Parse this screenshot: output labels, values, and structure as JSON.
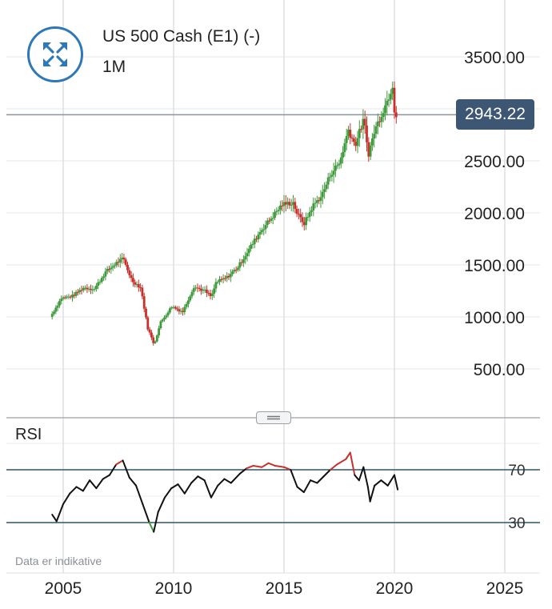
{
  "header": {
    "instrument": "US 500 Cash (E1) (-)",
    "timeframe": "1M",
    "expand_icon": "expand-arrows-icon"
  },
  "price_tag": "2943.22",
  "rsi": {
    "label": "RSI",
    "levels": [
      "70",
      "30"
    ]
  },
  "disclaimer": "Data er indikative",
  "colors": {
    "up": "#3d9a3a",
    "down": "#c8302c",
    "rsi_line": "#111111",
    "rsi_overbought": "#c8302c",
    "rsi_oversold": "#3d9a3a",
    "level_line": "#2e5566",
    "price_tag_bg": "#3d5673",
    "accent": "#2f78b7"
  },
  "chart_data": {
    "type": "candlestick",
    "last_price": 2943.22,
    "y_ticks": [
      "3500.00",
      "2500.00",
      "2000.00",
      "1500.00",
      "1000.00",
      "500.00"
    ],
    "x_ticks": [
      "2005",
      "2010",
      "2015",
      "2020",
      "2025"
    ],
    "grid": true,
    "price_points": [
      [
        2004.5,
        1000
      ],
      [
        2005.0,
        1180
      ],
      [
        2005.5,
        1200
      ],
      [
        2006.0,
        1280
      ],
      [
        2006.5,
        1270
      ],
      [
        2007.0,
        1430
      ],
      [
        2007.5,
        1520
      ],
      [
        2007.8,
        1560
      ],
      [
        2008.2,
        1350
      ],
      [
        2008.6,
        1280
      ],
      [
        2008.9,
        900
      ],
      [
        2009.2,
        735
      ],
      [
        2009.5,
        950
      ],
      [
        2010.0,
        1100
      ],
      [
        2010.5,
        1050
      ],
      [
        2011.0,
        1290
      ],
      [
        2011.5,
        1250
      ],
      [
        2011.8,
        1190
      ],
      [
        2012.0,
        1330
      ],
      [
        2012.5,
        1380
      ],
      [
        2013.0,
        1480
      ],
      [
        2013.5,
        1650
      ],
      [
        2014.0,
        1820
      ],
      [
        2014.5,
        1950
      ],
      [
        2015.0,
        2080
      ],
      [
        2015.5,
        2100
      ],
      [
        2015.7,
        1980
      ],
      [
        2016.0,
        1900
      ],
      [
        2016.4,
        2070
      ],
      [
        2016.8,
        2170
      ],
      [
        2017.2,
        2380
      ],
      [
        2017.6,
        2480
      ],
      [
        2018.0,
        2800
      ],
      [
        2018.3,
        2650
      ],
      [
        2018.7,
        2900
      ],
      [
        2018.9,
        2560
      ],
      [
        2019.2,
        2800
      ],
      [
        2019.5,
        2950
      ],
      [
        2019.8,
        3100
      ],
      [
        2020.0,
        3230
      ],
      [
        2020.1,
        2950
      ]
    ],
    "rsi_points": [
      [
        2004.5,
        36
      ],
      [
        2004.7,
        31
      ],
      [
        2005.0,
        44
      ],
      [
        2005.3,
        52
      ],
      [
        2005.6,
        57
      ],
      [
        2005.9,
        54
      ],
      [
        2006.2,
        62
      ],
      [
        2006.5,
        56
      ],
      [
        2006.8,
        63
      ],
      [
        2007.1,
        66
      ],
      [
        2007.4,
        74
      ],
      [
        2007.7,
        77
      ],
      [
        2008.0,
        64
      ],
      [
        2008.3,
        58
      ],
      [
        2008.6,
        44
      ],
      [
        2008.9,
        30
      ],
      [
        2009.1,
        23
      ],
      [
        2009.3,
        38
      ],
      [
        2009.6,
        49
      ],
      [
        2009.9,
        56
      ],
      [
        2010.2,
        59
      ],
      [
        2010.5,
        52
      ],
      [
        2010.8,
        60
      ],
      [
        2011.1,
        65
      ],
      [
        2011.4,
        62
      ],
      [
        2011.7,
        49
      ],
      [
        2012.0,
        58
      ],
      [
        2012.3,
        63
      ],
      [
        2012.6,
        60
      ],
      [
        2013.0,
        67
      ],
      [
        2013.3,
        71
      ],
      [
        2013.6,
        73
      ],
      [
        2014.0,
        72
      ],
      [
        2014.3,
        75
      ],
      [
        2014.6,
        73
      ],
      [
        2015.0,
        72
      ],
      [
        2015.3,
        70
      ],
      [
        2015.6,
        57
      ],
      [
        2015.9,
        53
      ],
      [
        2016.2,
        62
      ],
      [
        2016.5,
        60
      ],
      [
        2016.8,
        65
      ],
      [
        2017.1,
        70
      ],
      [
        2017.4,
        74
      ],
      [
        2017.8,
        78
      ],
      [
        2018.0,
        83
      ],
      [
        2018.2,
        66
      ],
      [
        2018.4,
        62
      ],
      [
        2018.6,
        72
      ],
      [
        2018.8,
        57
      ],
      [
        2018.9,
        46
      ],
      [
        2019.1,
        58
      ],
      [
        2019.4,
        62
      ],
      [
        2019.7,
        58
      ],
      [
        2020.0,
        66
      ],
      [
        2020.15,
        55
      ]
    ],
    "rsi_levels": [
      70,
      30
    ]
  }
}
